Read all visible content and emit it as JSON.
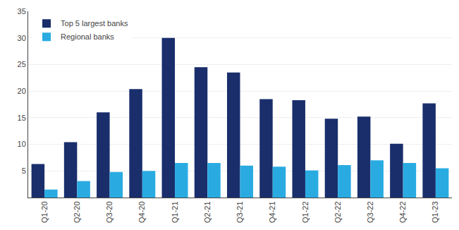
{
  "chart_data": {
    "type": "bar",
    "categories": [
      "Q1-20",
      "Q2-20",
      "Q3-20",
      "Q4-20",
      "Q1-21",
      "Q2-21",
      "Q3-21",
      "Q4-21",
      "Q1-22",
      "Q2-22",
      "Q3-22",
      "Q4-22",
      "Q1-23"
    ],
    "series": [
      {
        "name": "Top 5 largest banks",
        "color": "#1a2e6c",
        "values": [
          6.3,
          10.4,
          16.0,
          20.4,
          30.0,
          24.5,
          23.5,
          18.5,
          18.3,
          14.8,
          15.2,
          10.1,
          17.7
        ]
      },
      {
        "name": "Regional banks",
        "color": "#29abe2",
        "values": [
          1.5,
          3.1,
          4.8,
          5.0,
          6.5,
          6.5,
          6.0,
          5.8,
          5.1,
          6.1,
          7.0,
          6.5,
          5.5
        ]
      }
    ],
    "ylim": [
      0,
      35
    ],
    "yticks": [
      5,
      10,
      15,
      20,
      25,
      30,
      35
    ],
    "grid": true,
    "legend": "upper left"
  }
}
